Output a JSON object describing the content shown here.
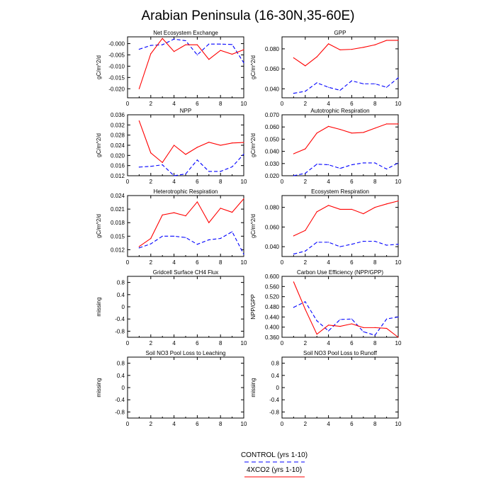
{
  "title": "Arabian Peninsula (16-30N,35-60E)",
  "colors": {
    "control": "#0000ff",
    "x4co2": "#ff0000",
    "axis": "#000000"
  },
  "legend": {
    "control_label": "CONTROL (yrs 1-10)",
    "x4co2_label": "4XCO2 (yrs 1-10)"
  },
  "chart_data": [
    {
      "type": "line",
      "title": "Net Ecosystem Exchange",
      "xlabel": "",
      "ylabel": "gC/m^2/d",
      "xlim": [
        0,
        10
      ],
      "ylim": [
        -0.024,
        0.003
      ],
      "xticks": [
        "0",
        "2",
        "4",
        "6",
        "8",
        "10"
      ],
      "yticks": [
        "-0.000",
        "-0.005",
        "-0.010",
        "-0.015",
        "-0.020"
      ],
      "ytick_values": [
        0,
        -0.005,
        -0.01,
        -0.015,
        -0.02
      ],
      "x": [
        1,
        2,
        3,
        4,
        5,
        6,
        7,
        8,
        9,
        10
      ],
      "series": [
        {
          "name": "CONTROL (yrs 1-10)",
          "style": "dashed",
          "color": "#0000ff",
          "values": [
            -0.0025,
            -0.0008,
            -0.0005,
            0.002,
            0.0013,
            -0.005,
            -0.0002,
            -0.0002,
            -0.0004,
            -0.0085
          ]
        },
        {
          "name": "4XCO2 (yrs 1-10)",
          "style": "solid",
          "color": "#ff0000",
          "values": [
            -0.02,
            -0.0045,
            0.0023,
            -0.0035,
            -0.0005,
            -0.0005,
            -0.007,
            -0.003,
            -0.0047,
            -0.0027
          ]
        }
      ]
    },
    {
      "type": "line",
      "title": "GPP",
      "xlabel": "",
      "ylabel": "gC/m^2/d",
      "xlim": [
        0,
        10
      ],
      "ylim": [
        0.031,
        0.092
      ],
      "xticks": [
        "0",
        "2",
        "4",
        "6",
        "8",
        "10"
      ],
      "yticks": [
        "0.040",
        "0.060",
        "0.080"
      ],
      "ytick_values": [
        0.04,
        0.06,
        0.08
      ],
      "x": [
        1,
        2,
        3,
        4,
        5,
        6,
        7,
        8,
        9,
        10
      ],
      "series": [
        {
          "name": "CONTROL (yrs 1-10)",
          "style": "dashed",
          "color": "#0000ff",
          "values": [
            0.0355,
            0.0375,
            0.046,
            0.0415,
            0.0385,
            0.048,
            0.045,
            0.045,
            0.0415,
            0.051
          ]
        },
        {
          "name": "4XCO2 (yrs 1-10)",
          "style": "solid",
          "color": "#ff0000",
          "values": [
            0.071,
            0.063,
            0.072,
            0.085,
            0.079,
            0.0795,
            0.0815,
            0.084,
            0.0885,
            0.0885
          ]
        }
      ]
    },
    {
      "type": "line",
      "title": "NPP",
      "xlabel": "",
      "ylabel": "gC/m^2/d",
      "xlim": [
        0,
        10
      ],
      "ylim": [
        0.012,
        0.036
      ],
      "xticks": [
        "0",
        "2",
        "4",
        "6",
        "8",
        "10"
      ],
      "yticks": [
        "0.012",
        "0.016",
        "0.020",
        "0.024",
        "0.028",
        "0.032",
        "0.036"
      ],
      "ytick_values": [
        0.012,
        0.016,
        0.02,
        0.024,
        0.028,
        0.032,
        0.036
      ],
      "x": [
        1,
        2,
        3,
        4,
        5,
        6,
        7,
        8,
        9,
        10
      ],
      "series": [
        {
          "name": "CONTROL (yrs 1-10)",
          "style": "dashed",
          "color": "#0000ff",
          "values": [
            0.0154,
            0.0157,
            0.0163,
            0.012,
            0.0127,
            0.0182,
            0.0137,
            0.0137,
            0.0155,
            0.0205
          ]
        },
        {
          "name": "4XCO2 (yrs 1-10)",
          "style": "solid",
          "color": "#ff0000",
          "values": [
            0.0336,
            0.021,
            0.0172,
            0.024,
            0.0204,
            0.0232,
            0.0252,
            0.024,
            0.0249,
            0.0251
          ]
        }
      ]
    },
    {
      "type": "line",
      "title": "Autotrophic Respiration",
      "xlabel": "",
      "ylabel": "gC/m^2/d",
      "xlim": [
        0,
        10
      ],
      "ylim": [
        0.02,
        0.07
      ],
      "xticks": [
        "0",
        "2",
        "4",
        "6",
        "8",
        "10"
      ],
      "yticks": [
        "0.020",
        "0.030",
        "0.040",
        "0.050",
        "0.060",
        "0.070"
      ],
      "ytick_values": [
        0.02,
        0.03,
        0.04,
        0.05,
        0.06,
        0.07
      ],
      "x": [
        1,
        2,
        3,
        4,
        5,
        6,
        7,
        8,
        9,
        10
      ],
      "series": [
        {
          "name": "CONTROL (yrs 1-10)",
          "style": "dashed",
          "color": "#0000ff",
          "values": [
            0.02,
            0.022,
            0.0295,
            0.029,
            0.026,
            0.029,
            0.0305,
            0.0305,
            0.0255,
            0.0305
          ]
        },
        {
          "name": "4XCO2 (yrs 1-10)",
          "style": "solid",
          "color": "#ff0000",
          "values": [
            0.038,
            0.042,
            0.055,
            0.0605,
            0.058,
            0.055,
            0.0555,
            0.059,
            0.0625,
            0.0625
          ]
        }
      ]
    },
    {
      "type": "line",
      "title": "Heterotrophic Respiration",
      "xlabel": "",
      "ylabel": "gC/m^2/d",
      "xlim": [
        0,
        10
      ],
      "ylim": [
        0.0105,
        0.024
      ],
      "xticks": [
        "0",
        "2",
        "4",
        "6",
        "8",
        "10"
      ],
      "yticks": [
        "0.012",
        "0.015",
        "0.018",
        "0.021",
        "0.024"
      ],
      "ytick_values": [
        0.012,
        0.015,
        0.018,
        0.021,
        0.024
      ],
      "x": [
        1,
        2,
        3,
        4,
        5,
        6,
        7,
        8,
        9,
        10
      ],
      "series": [
        {
          "name": "CONTROL (yrs 1-10)",
          "style": "dashed",
          "color": "#0000ff",
          "values": [
            0.0124,
            0.0133,
            0.015,
            0.015,
            0.0147,
            0.0132,
            0.0142,
            0.0145,
            0.016,
            0.011
          ]
        },
        {
          "name": "4XCO2 (yrs 1-10)",
          "style": "solid",
          "color": "#ff0000",
          "values": [
            0.0127,
            0.0145,
            0.0197,
            0.0202,
            0.0195,
            0.0226,
            0.018,
            0.0212,
            0.0203,
            0.0233
          ]
        }
      ]
    },
    {
      "type": "line",
      "title": "Ecosystem Respiration",
      "xlabel": "",
      "ylabel": "gC/m^2/d",
      "xlim": [
        0,
        10
      ],
      "ylim": [
        0.03,
        0.092
      ],
      "xticks": [
        "0",
        "2",
        "4",
        "6",
        "8",
        "10"
      ],
      "yticks": [
        "0.040",
        "0.060",
        "0.080"
      ],
      "ytick_values": [
        0.04,
        0.06,
        0.08
      ],
      "x": [
        1,
        2,
        3,
        4,
        5,
        6,
        7,
        8,
        9,
        10
      ],
      "series": [
        {
          "name": "CONTROL (yrs 1-10)",
          "style": "dashed",
          "color": "#0000ff",
          "values": [
            0.0325,
            0.0355,
            0.0445,
            0.0445,
            0.04,
            0.0425,
            0.0455,
            0.0455,
            0.0415,
            0.0425
          ]
        },
        {
          "name": "4XCO2 (yrs 1-10)",
          "style": "solid",
          "color": "#ff0000",
          "values": [
            0.051,
            0.0565,
            0.0755,
            0.082,
            0.078,
            0.078,
            0.0735,
            0.08,
            0.0835,
            0.0865
          ]
        }
      ]
    },
    {
      "type": "line",
      "title": "Gridcell Surface CH4 Flux",
      "xlabel": "",
      "ylabel": "missing",
      "xlim": [
        0,
        10
      ],
      "ylim": [
        -1,
        1
      ],
      "xticks": [
        "0",
        "2",
        "4",
        "6",
        "8",
        "10"
      ],
      "yticks": [
        "-0.8",
        "-0.4",
        "0",
        "0.4",
        "0.8"
      ],
      "ytick_values": [
        -0.8,
        -0.4,
        0,
        0.4,
        0.8
      ],
      "x": [],
      "series": []
    },
    {
      "type": "line",
      "title": "Carbon Use Efficiency (NPP/GPP)",
      "xlabel": "",
      "ylabel": "NPP/GPP",
      "xlim": [
        0,
        10
      ],
      "ylim": [
        0.36,
        0.6
      ],
      "xticks": [
        "0",
        "2",
        "4",
        "6",
        "8",
        "10"
      ],
      "yticks": [
        "0.360",
        "0.400",
        "0.440",
        "0.480",
        "0.520",
        "0.560",
        "0.600"
      ],
      "ytick_values": [
        0.36,
        0.4,
        0.44,
        0.48,
        0.52,
        0.56,
        0.6
      ],
      "x": [
        1,
        2,
        3,
        4,
        5,
        6,
        7,
        8,
        9,
        10
      ],
      "series": [
        {
          "name": "CONTROL (yrs 1-10)",
          "style": "dashed",
          "color": "#0000ff",
          "values": [
            0.478,
            0.5,
            0.425,
            0.385,
            0.43,
            0.432,
            0.382,
            0.368,
            0.432,
            0.44
          ]
        },
        {
          "name": "4XCO2 (yrs 1-10)",
          "style": "solid",
          "color": "#ff0000",
          "values": [
            0.578,
            0.47,
            0.372,
            0.408,
            0.403,
            0.413,
            0.398,
            0.398,
            0.395,
            0.36
          ]
        }
      ]
    },
    {
      "type": "line",
      "title": "Soil NO3 Pool Loss to Leaching",
      "xlabel": "",
      "ylabel": "missing",
      "xlim": [
        0,
        10
      ],
      "ylim": [
        -1,
        1
      ],
      "xticks": [
        "0",
        "2",
        "4",
        "6",
        "8",
        "10"
      ],
      "yticks": [
        "-0.8",
        "-0.4",
        "0",
        "0.4",
        "0.8"
      ],
      "ytick_values": [
        -0.8,
        -0.4,
        0,
        0.4,
        0.8
      ],
      "x": [],
      "series": []
    },
    {
      "type": "line",
      "title": "Soil NO3 Pool Loss to Runoff",
      "xlabel": "",
      "ylabel": "missing",
      "xlim": [
        0,
        10
      ],
      "ylim": [
        -1,
        1
      ],
      "xticks": [
        "0",
        "2",
        "4",
        "6",
        "8",
        "10"
      ],
      "yticks": [
        "-0.8",
        "-0.4",
        "0",
        "0.4",
        "0.8"
      ],
      "ytick_values": [
        -0.8,
        -0.4,
        0,
        0.4,
        0.8
      ],
      "x": [],
      "series": []
    }
  ]
}
